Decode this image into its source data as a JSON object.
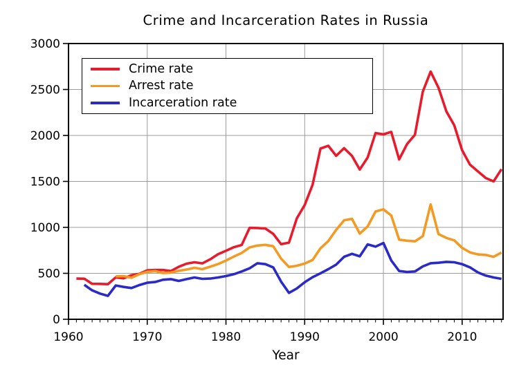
{
  "chart_data": {
    "type": "line",
    "title": "Crime and Incarceration Rates in Russia",
    "xlabel": "Year",
    "ylabel": "",
    "x_range": [
      1960,
      2015.2
    ],
    "ylim": [
      0,
      3000
    ],
    "x_ticks": [
      1960,
      1970,
      1980,
      1990,
      2000,
      2010
    ],
    "y_ticks": [
      0,
      500,
      1000,
      1500,
      2000,
      2500,
      3000
    ],
    "x_minor_tick_step": 1,
    "grid": true,
    "legend_position": "top-left",
    "series": [
      {
        "name": "Crime rate",
        "key": "crime-rate",
        "color": "#e81b2c",
        "points": [
          [
            1961,
            443
          ],
          [
            1962,
            441
          ],
          [
            1963,
            386
          ],
          [
            1964,
            385
          ],
          [
            1965,
            382
          ],
          [
            1966,
            456
          ],
          [
            1967,
            446
          ],
          [
            1968,
            479
          ],
          [
            1969,
            494
          ],
          [
            1970,
            532
          ],
          [
            1971,
            536
          ],
          [
            1972,
            536
          ],
          [
            1973,
            525
          ],
          [
            1974,
            571
          ],
          [
            1975,
            605
          ],
          [
            1976,
            620
          ],
          [
            1977,
            608
          ],
          [
            1978,
            653
          ],
          [
            1979,
            708
          ],
          [
            1980,
            745
          ],
          [
            1981,
            784
          ],
          [
            1982,
            808
          ],
          [
            1983,
            995
          ],
          [
            1984,
            993
          ],
          [
            1985,
            988
          ],
          [
            1986,
            929
          ],
          [
            1987,
            817
          ],
          [
            1988,
            834
          ],
          [
            1989,
            1098
          ],
          [
            1990,
            1243
          ],
          [
            1991,
            1463
          ],
          [
            1992,
            1857
          ],
          [
            1993,
            1888
          ],
          [
            1994,
            1778
          ],
          [
            1995,
            1862
          ],
          [
            1996,
            1778
          ],
          [
            1997,
            1629
          ],
          [
            1998,
            1760
          ],
          [
            1999,
            2026
          ],
          [
            2000,
            2012
          ],
          [
            2001,
            2039
          ],
          [
            2002,
            1739
          ],
          [
            2003,
            1906
          ],
          [
            2004,
            2007
          ],
          [
            2005,
            2477
          ],
          [
            2006,
            2695
          ],
          [
            2007,
            2519
          ],
          [
            2008,
            2261
          ],
          [
            2009,
            2110
          ],
          [
            2010,
            1839
          ],
          [
            2011,
            1682
          ],
          [
            2012,
            1609
          ],
          [
            2013,
            1537
          ],
          [
            2014,
            1500
          ],
          [
            2015,
            1633
          ]
        ]
      },
      {
        "name": "Arrest rate",
        "key": "arrest-rate",
        "color": "#f49a23",
        "points": [
          [
            1966,
            467
          ],
          [
            1967,
            470
          ],
          [
            1968,
            452
          ],
          [
            1969,
            490
          ],
          [
            1970,
            516
          ],
          [
            1971,
            524
          ],
          [
            1972,
            503
          ],
          [
            1973,
            508
          ],
          [
            1974,
            527
          ],
          [
            1975,
            541
          ],
          [
            1976,
            560
          ],
          [
            1977,
            545
          ],
          [
            1978,
            572
          ],
          [
            1979,
            601
          ],
          [
            1980,
            639
          ],
          [
            1981,
            682
          ],
          [
            1982,
            722
          ],
          [
            1983,
            782
          ],
          [
            1984,
            802
          ],
          [
            1985,
            810
          ],
          [
            1986,
            795
          ],
          [
            1987,
            660
          ],
          [
            1988,
            569
          ],
          [
            1989,
            582
          ],
          [
            1990,
            606
          ],
          [
            1991,
            645
          ],
          [
            1992,
            772
          ],
          [
            1993,
            851
          ],
          [
            1994,
            973
          ],
          [
            1995,
            1077
          ],
          [
            1996,
            1093
          ],
          [
            1997,
            932
          ],
          [
            1998,
            1010
          ],
          [
            1999,
            1173
          ],
          [
            2000,
            1196
          ],
          [
            2001,
            1129
          ],
          [
            2002,
            866
          ],
          [
            2003,
            855
          ],
          [
            2004,
            848
          ],
          [
            2005,
            904
          ],
          [
            2006,
            1250
          ],
          [
            2007,
            926
          ],
          [
            2008,
            885
          ],
          [
            2009,
            859
          ],
          [
            2010,
            777
          ],
          [
            2011,
            728
          ],
          [
            2012,
            706
          ],
          [
            2013,
            700
          ],
          [
            2014,
            680
          ],
          [
            2015,
            726
          ]
        ]
      },
      {
        "name": "Incarceration rate",
        "key": "incarceration-rate",
        "color": "#2a2ac8",
        "points": [
          [
            1962,
            375
          ],
          [
            1963,
            315
          ],
          [
            1964,
            280
          ],
          [
            1965,
            255
          ],
          [
            1966,
            368
          ],
          [
            1967,
            352
          ],
          [
            1968,
            340
          ],
          [
            1969,
            372
          ],
          [
            1970,
            398
          ],
          [
            1971,
            405
          ],
          [
            1972,
            430
          ],
          [
            1973,
            437
          ],
          [
            1974,
            417
          ],
          [
            1975,
            437
          ],
          [
            1976,
            455
          ],
          [
            1977,
            440
          ],
          [
            1978,
            443
          ],
          [
            1979,
            455
          ],
          [
            1980,
            470
          ],
          [
            1981,
            490
          ],
          [
            1982,
            520
          ],
          [
            1983,
            555
          ],
          [
            1984,
            610
          ],
          [
            1985,
            600
          ],
          [
            1986,
            565
          ],
          [
            1987,
            410
          ],
          [
            1988,
            287
          ],
          [
            1989,
            335
          ],
          [
            1990,
            403
          ],
          [
            1991,
            458
          ],
          [
            1992,
            500
          ],
          [
            1993,
            545
          ],
          [
            1994,
            595
          ],
          [
            1995,
            680
          ],
          [
            1996,
            712
          ],
          [
            1997,
            685
          ],
          [
            1998,
            815
          ],
          [
            1999,
            790
          ],
          [
            2000,
            830
          ],
          [
            2001,
            640
          ],
          [
            2002,
            525
          ],
          [
            2003,
            515
          ],
          [
            2004,
            520
          ],
          [
            2005,
            575
          ],
          [
            2006,
            610
          ],
          [
            2007,
            615
          ],
          [
            2008,
            625
          ],
          [
            2009,
            620
          ],
          [
            2010,
            600
          ],
          [
            2011,
            565
          ],
          [
            2012,
            510
          ],
          [
            2013,
            475
          ],
          [
            2014,
            455
          ],
          [
            2015,
            440
          ]
        ]
      }
    ]
  },
  "colors": {
    "grid": "#9b9b9b",
    "axis": "#000000",
    "background": "#ffffff"
  }
}
